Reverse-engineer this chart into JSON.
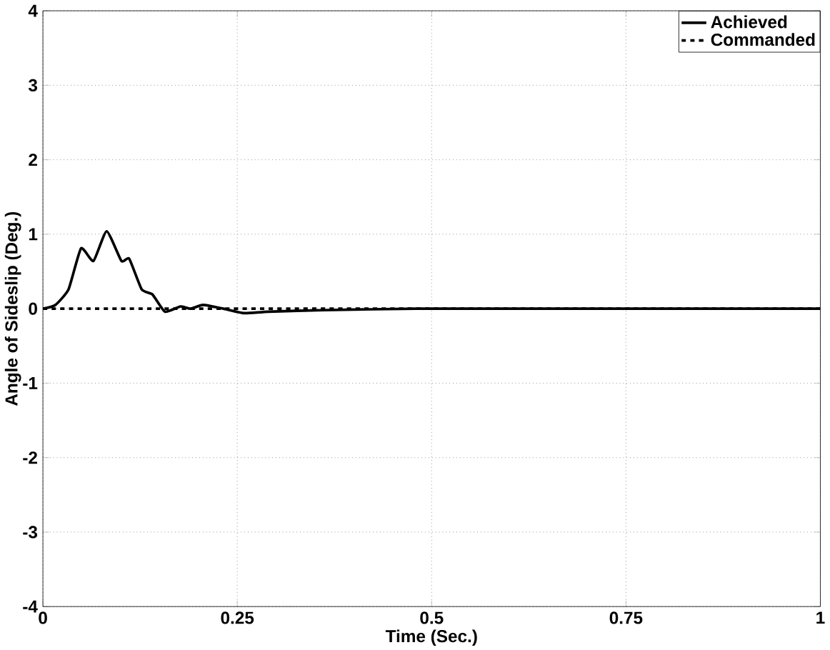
{
  "chart_data": {
    "type": "line",
    "xlabel": "Time (Sec.)",
    "ylabel": "Angle of Sideslip (Deg.)",
    "xlim": [
      0,
      1
    ],
    "ylim": [
      -4,
      4
    ],
    "xticks": [
      0,
      0.25,
      0.5,
      0.75,
      1
    ],
    "yticks": [
      -4,
      -3,
      -2,
      -1,
      0,
      1,
      2,
      3,
      4
    ],
    "grid": true,
    "legend": "top right",
    "series": [
      {
        "name": "Achieved",
        "color": "#000000",
        "line_style": "solid",
        "x": [
          0,
          0.016,
          0.033,
          0.049,
          0.065,
          0.082,
          0.101,
          0.111,
          0.127,
          0.141,
          0.157,
          0.177,
          0.19,
          0.206,
          0.232,
          0.259,
          0.29,
          0.36,
          0.48,
          0.7,
          1
        ],
        "values": [
          0,
          0.05,
          0.26,
          0.81,
          0.64,
          1.04,
          0.64,
          0.67,
          0.26,
          0.19,
          -0.04,
          0.03,
          0,
          0.05,
          0,
          -0.06,
          -0.04,
          -0.02,
          0,
          0,
          0
        ]
      },
      {
        "name": "Commanded",
        "color": "#000000",
        "line_style": "dashed",
        "x": [
          0,
          1
        ],
        "values": [
          0,
          0
        ]
      }
    ]
  }
}
